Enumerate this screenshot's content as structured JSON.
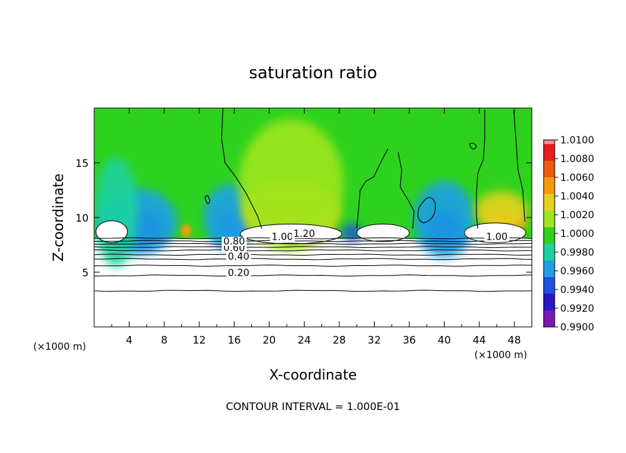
{
  "chart_data": {
    "type": "heatmap",
    "title": "saturation ratio",
    "xlabel": "X-coordinate",
    "ylabel": "Z-coordinate",
    "x_unit_left": "(×1000 m)",
    "x_unit_right": "(×1000 m)",
    "footer": "CONTOUR INTERVAL = 1.000E-01",
    "xlim": [
      0,
      50
    ],
    "ylim": [
      0,
      20
    ],
    "x_ticks": [
      4,
      8,
      12,
      16,
      20,
      24,
      28,
      32,
      36,
      40,
      44,
      48
    ],
    "y_ticks": [
      5,
      10,
      15
    ],
    "colorbar": {
      "ticks": [
        "1.0100",
        "1.0080",
        "1.0060",
        "1.0040",
        "1.0020",
        "1.0000",
        "0.9980",
        "0.9960",
        "0.9940",
        "0.9920",
        "0.9900"
      ],
      "colors": [
        "#f08c8c",
        "#e81e1e",
        "#f05a0a",
        "#f59a0a",
        "#e6d21e",
        "#9ee61e",
        "#2ed21e",
        "#1ed2a0",
        "#1ea0e6",
        "#1e50e6",
        "#2a14c8",
        "#7a1ab4"
      ]
    },
    "contour_labels": [
      {
        "text": "0.20",
        "x": 16.5,
        "z": 4.7
      },
      {
        "text": "0.40",
        "x": 16.5,
        "z": 6.2
      },
      {
        "text": "0.60",
        "x": 16.0,
        "z": 7.0
      },
      {
        "text": "0.80",
        "x": 16.0,
        "z": 7.6
      },
      {
        "text": "1.00",
        "x": 21.5,
        "z": 8.0
      },
      {
        "text": "1.20",
        "x": 24.0,
        "z": 8.3
      },
      {
        "text": "1.00",
        "x": 46.0,
        "z": 8.0
      }
    ],
    "horizontal_contours_z": [
      3.3,
      4.7,
      5.6,
      6.2,
      6.6,
      7.0,
      7.3,
      7.6,
      7.85,
      8.1
    ],
    "moist_layer": {
      "z_bottom": 8.1,
      "z_top": 20,
      "background_value": "1.0000"
    },
    "blobs": [
      {
        "x": 5.0,
        "z": 9.0,
        "rx": 3.0,
        "rz": 1.6,
        "level": "0.9920"
      },
      {
        "x": 5.0,
        "z": 9.6,
        "rx": 4.5,
        "rz": 3.0,
        "level": "0.9960"
      },
      {
        "x": 2.5,
        "z": 10.5,
        "rx": 2.5,
        "rz": 5.0,
        "level": "0.9980"
      },
      {
        "x": 15.5,
        "z": 9.0,
        "rx": 1.5,
        "rz": 1.5,
        "level": "0.9940"
      },
      {
        "x": 15.5,
        "z": 10.0,
        "rx": 3.0,
        "rz": 3.0,
        "level": "0.9960"
      },
      {
        "x": 22.5,
        "z": 9.6,
        "rx": 4.5,
        "rz": 1.4,
        "level": "1.0060"
      },
      {
        "x": 22.5,
        "z": 10.5,
        "rx": 5.5,
        "rz": 3.0,
        "level": "1.0040"
      },
      {
        "x": 22.5,
        "z": 13.0,
        "rx": 6.0,
        "rz": 6.0,
        "level": "1.0020"
      },
      {
        "x": 29.5,
        "z": 8.6,
        "rx": 1.2,
        "rz": 0.8,
        "level": "0.9940"
      },
      {
        "x": 40.0,
        "z": 9.0,
        "rx": 2.0,
        "rz": 1.6,
        "level": "0.9920"
      },
      {
        "x": 40.0,
        "z": 9.8,
        "rx": 3.5,
        "rz": 3.5,
        "level": "0.9960"
      },
      {
        "x": 47.0,
        "z": 9.6,
        "rx": 2.5,
        "rz": 1.0,
        "level": "1.0060"
      },
      {
        "x": 46.5,
        "z": 10.6,
        "rx": 3.0,
        "rz": 1.8,
        "level": "1.0040"
      },
      {
        "x": 10.5,
        "z": 8.8,
        "rx": 0.6,
        "rz": 0.6,
        "level": "1.0060"
      }
    ],
    "white_caps": [
      {
        "x": 2.0,
        "z": 8.7,
        "rx": 1.8,
        "rz": 1.0
      },
      {
        "x": 22.5,
        "z": 8.5,
        "rx": 5.8,
        "rz": 0.9
      },
      {
        "x": 33.0,
        "z": 8.6,
        "rx": 3.0,
        "rz": 0.8
      },
      {
        "x": 45.8,
        "z": 8.6,
        "rx": 3.5,
        "rz": 0.9
      }
    ]
  }
}
